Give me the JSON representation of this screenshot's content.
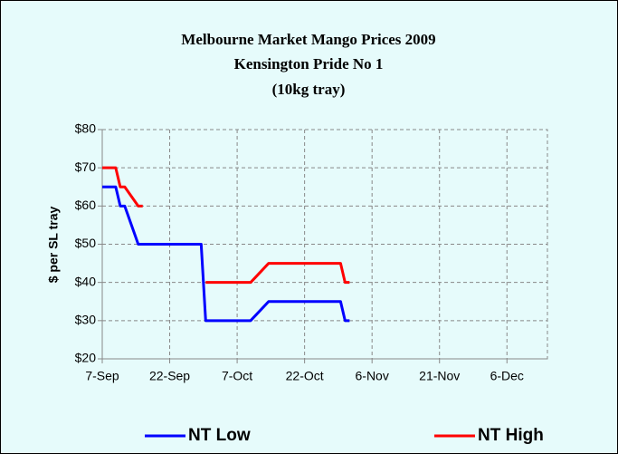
{
  "chart_data": {
    "type": "line",
    "title": [
      "Melbourne Market Mango Prices 2009",
      "Kensington Pride No 1",
      "(10kg tray)"
    ],
    "y_label": "$ per SL tray",
    "x": [
      "7-Sep",
      "10-Sep",
      "11-Sep",
      "12-Sep",
      "15-Sep",
      "16-Sep",
      "29-Sep",
      "30-Sep",
      "10-Oct",
      "14-Oct",
      "30-Oct",
      "31-Oct",
      "1-Nov"
    ],
    "series": [
      {
        "name": "NT Low",
        "color": "#0000ff",
        "values": [
          65,
          65,
          60,
          60,
          50,
          50,
          50,
          30,
          30,
          35,
          35,
          30,
          30
        ]
      },
      {
        "name": "NT High",
        "color": "#ff0000",
        "values": [
          70,
          70,
          65,
          65,
          60,
          60,
          null,
          40,
          40,
          45,
          45,
          40,
          40
        ]
      }
    ],
    "xlim": [
      "7-Sep",
      "15-Dec"
    ],
    "xticks": [
      "7-Sep",
      "22-Sep",
      "7-Oct",
      "22-Oct",
      "6-Nov",
      "21-Nov",
      "6-Dec"
    ],
    "ylim": [
      20,
      80
    ],
    "yticks": [
      {
        "value": 20,
        "label": "$20"
      },
      {
        "value": 30,
        "label": "$30"
      },
      {
        "value": 40,
        "label": "$40"
      },
      {
        "value": 50,
        "label": "$50"
      },
      {
        "value": 60,
        "label": "$60"
      },
      {
        "value": 70,
        "label": "$70"
      },
      {
        "value": 80,
        "label": "$80"
      }
    ],
    "grid": true,
    "legend": "bottom"
  }
}
